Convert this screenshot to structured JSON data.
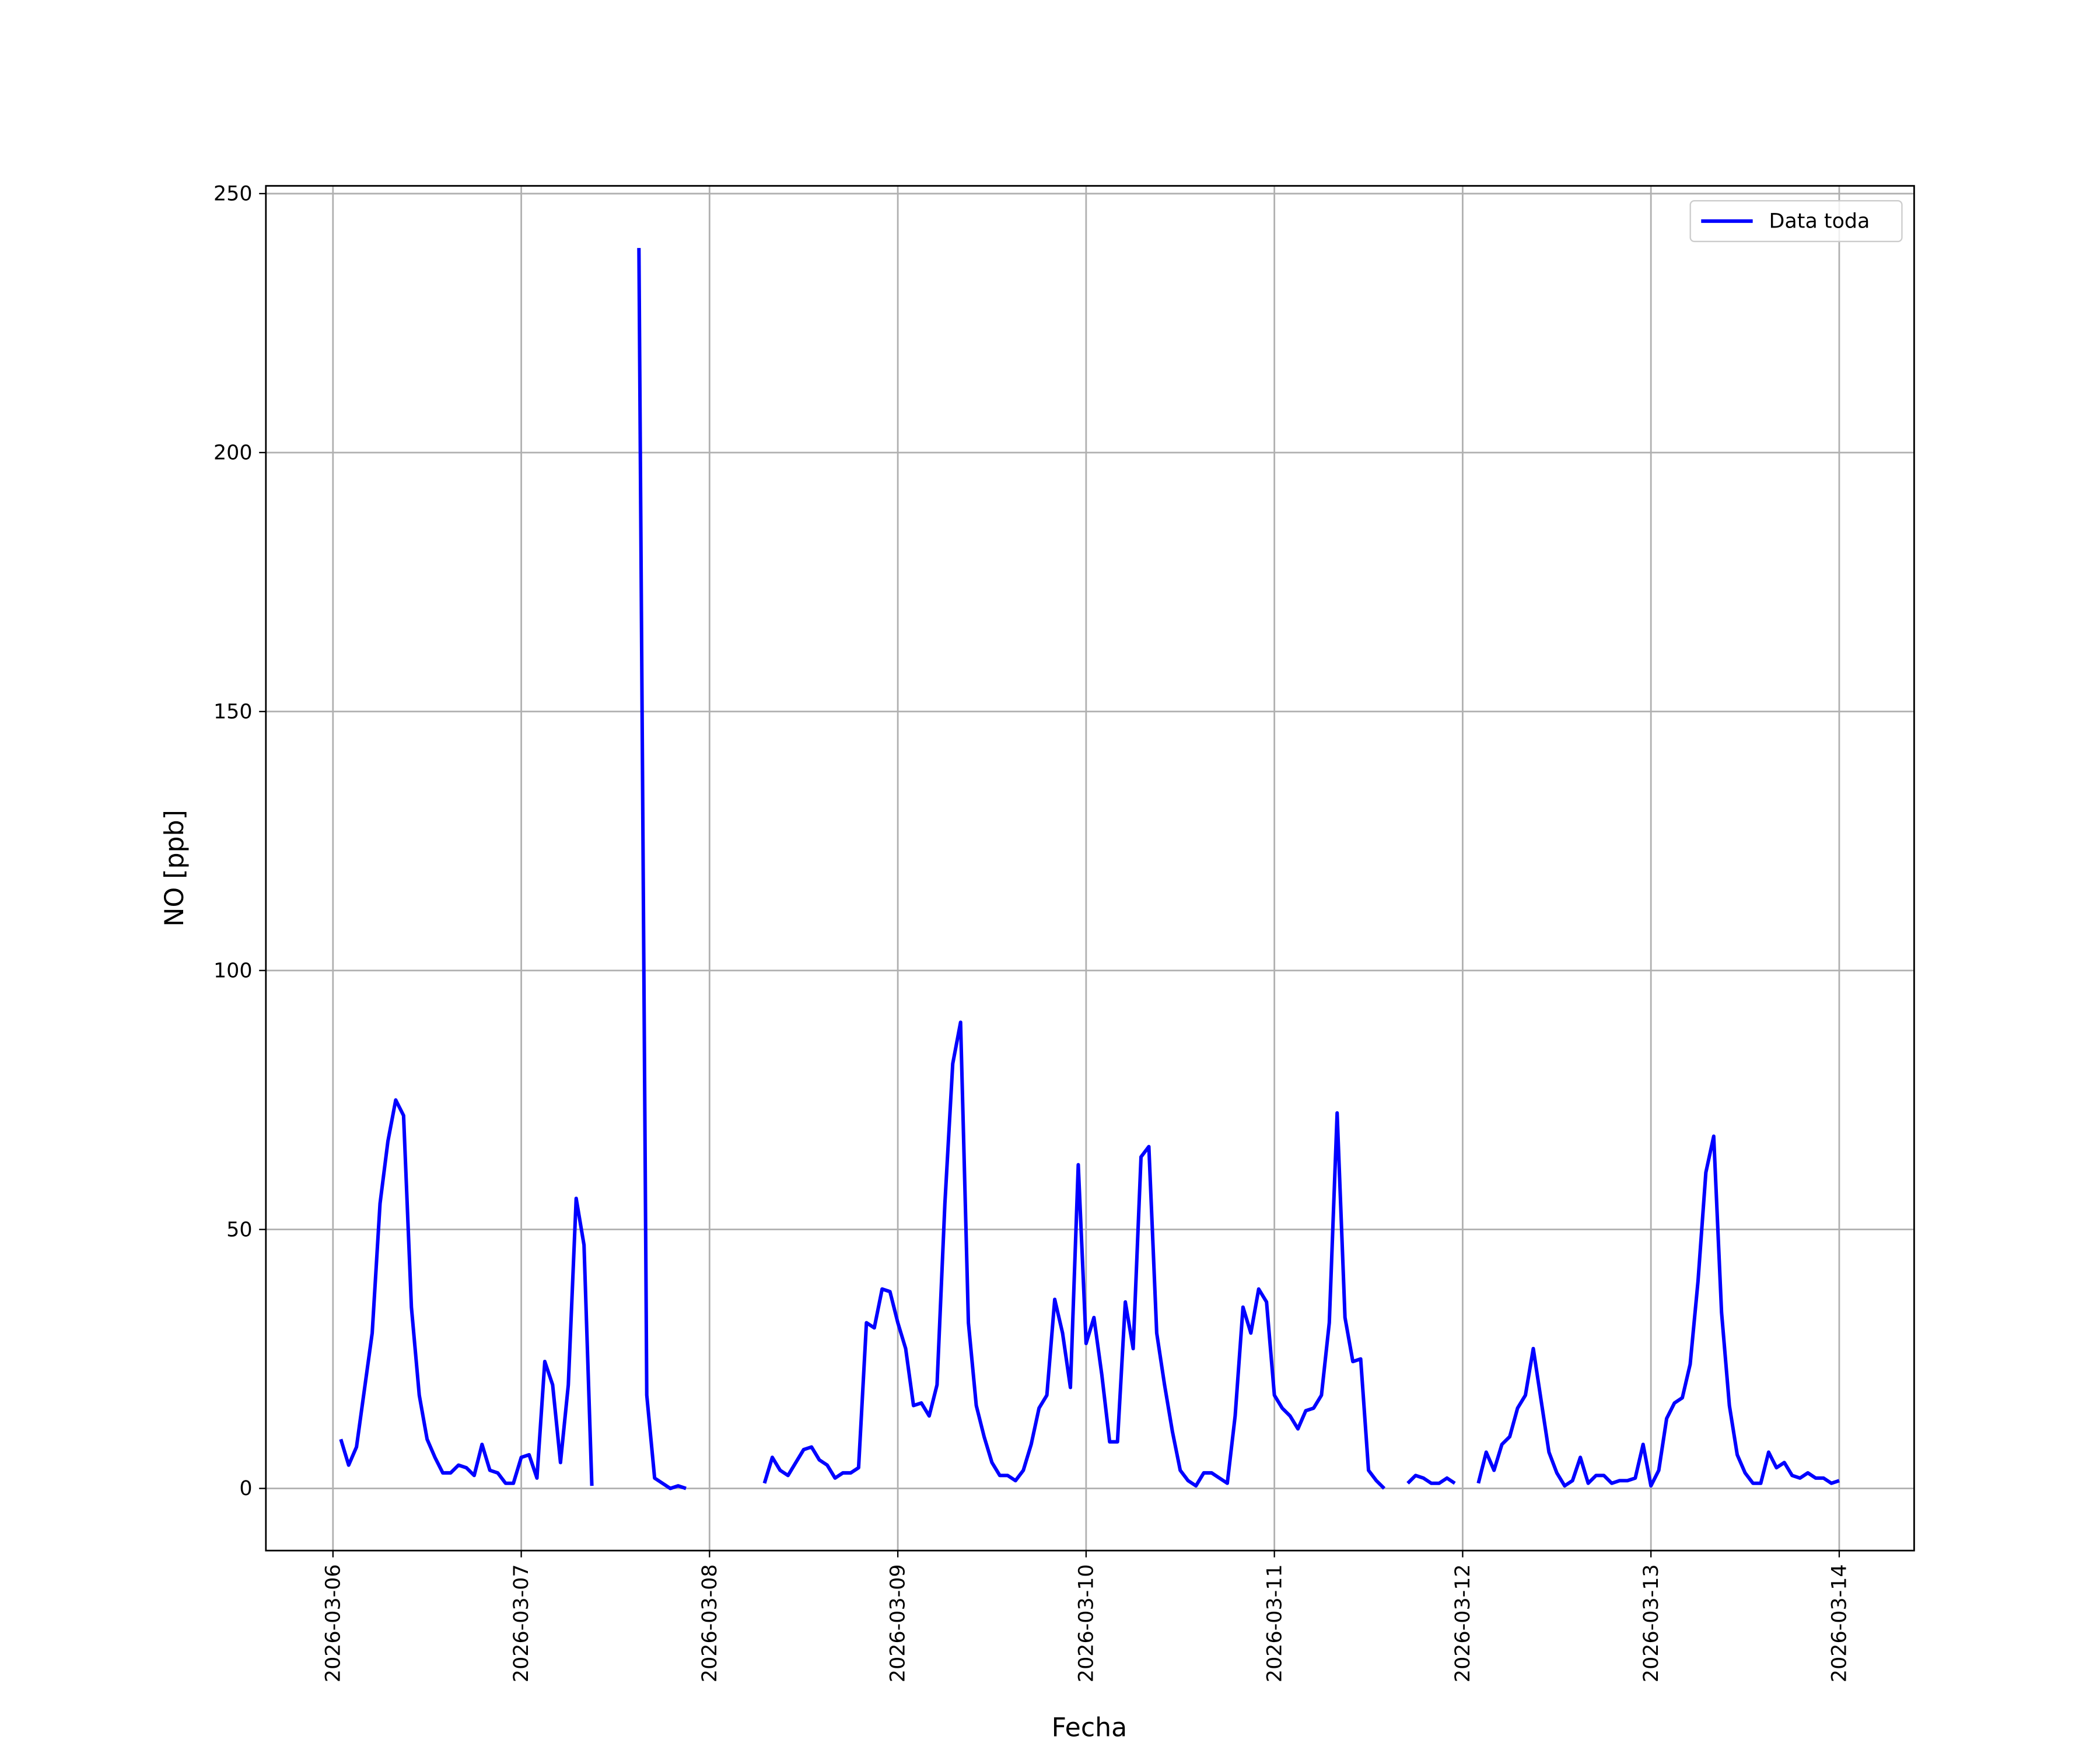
{
  "chart_data": {
    "type": "line",
    "x_label": "Fecha",
    "y_label": "NO [ppb]",
    "x": [
      "2026-03-06 01:00",
      "2026-03-06 02:00",
      "2026-03-06 03:00",
      "2026-03-06 04:00",
      "2026-03-06 05:00",
      "2026-03-06 06:00",
      "2026-03-06 07:00",
      "2026-03-06 08:00",
      "2026-03-06 09:00",
      "2026-03-06 10:00",
      "2026-03-06 11:00",
      "2026-03-06 12:00",
      "2026-03-06 13:00",
      "2026-03-06 14:00",
      "2026-03-06 15:00",
      "2026-03-06 16:00",
      "2026-03-06 17:00",
      "2026-03-06 18:00",
      "2026-03-06 19:00",
      "2026-03-06 20:00",
      "2026-03-06 21:00",
      "2026-03-06 22:00",
      "2026-03-06 23:00",
      "2026-03-07 00:00",
      "2026-03-07 01:00",
      "2026-03-07 02:00",
      "2026-03-07 03:00",
      "2026-03-07 04:00",
      "2026-03-07 05:00",
      "2026-03-07 06:00",
      "2026-03-07 07:00",
      "2026-03-07 08:00",
      "2026-03-07 09:00",
      "2026-03-07 10:00",
      "2026-03-07 11:00",
      "2026-03-07 12:00",
      "2026-03-07 13:00",
      "2026-03-07 14:00",
      "2026-03-07 15:00",
      "2026-03-07 16:00",
      "2026-03-07 17:00",
      "2026-03-07 18:00",
      "2026-03-07 19:00",
      "2026-03-07 20:00",
      "2026-03-07 21:00",
      "2026-03-07 22:00",
      "2026-03-07 23:00",
      "2026-03-08 00:00",
      "2026-03-08 01:00",
      "2026-03-08 02:00",
      "2026-03-08 03:00",
      "2026-03-08 04:00",
      "2026-03-08 05:00",
      "2026-03-08 06:00",
      "2026-03-08 07:00",
      "2026-03-08 08:00",
      "2026-03-08 09:00",
      "2026-03-08 10:00",
      "2026-03-08 11:00",
      "2026-03-08 12:00",
      "2026-03-08 13:00",
      "2026-03-08 14:00",
      "2026-03-08 15:00",
      "2026-03-08 16:00",
      "2026-03-08 17:00",
      "2026-03-08 18:00",
      "2026-03-08 19:00",
      "2026-03-08 20:00",
      "2026-03-08 21:00",
      "2026-03-08 22:00",
      "2026-03-08 23:00",
      "2026-03-09 00:00",
      "2026-03-09 01:00",
      "2026-03-09 02:00",
      "2026-03-09 03:00",
      "2026-03-09 04:00",
      "2026-03-09 05:00",
      "2026-03-09 06:00",
      "2026-03-09 07:00",
      "2026-03-09 08:00",
      "2026-03-09 09:00",
      "2026-03-09 10:00",
      "2026-03-09 11:00",
      "2026-03-09 12:00",
      "2026-03-09 13:00",
      "2026-03-09 14:00",
      "2026-03-09 15:00",
      "2026-03-09 16:00",
      "2026-03-09 17:00",
      "2026-03-09 18:00",
      "2026-03-09 19:00",
      "2026-03-09 20:00",
      "2026-03-09 21:00",
      "2026-03-09 22:00",
      "2026-03-09 23:00",
      "2026-03-10 00:00",
      "2026-03-10 01:00",
      "2026-03-10 02:00",
      "2026-03-10 03:00",
      "2026-03-10 04:00",
      "2026-03-10 05:00",
      "2026-03-10 06:00",
      "2026-03-10 07:00",
      "2026-03-10 08:00",
      "2026-03-10 09:00",
      "2026-03-10 10:00",
      "2026-03-10 11:00",
      "2026-03-10 12:00",
      "2026-03-10 13:00",
      "2026-03-10 14:00",
      "2026-03-10 15:00",
      "2026-03-10 16:00",
      "2026-03-10 17:00",
      "2026-03-10 18:00",
      "2026-03-10 19:00",
      "2026-03-10 20:00",
      "2026-03-10 21:00",
      "2026-03-10 22:00",
      "2026-03-10 23:00",
      "2026-03-11 00:00",
      "2026-03-11 01:00",
      "2026-03-11 02:00",
      "2026-03-11 03:00",
      "2026-03-11 04:00",
      "2026-03-11 05:00",
      "2026-03-11 06:00",
      "2026-03-11 07:00",
      "2026-03-11 08:00",
      "2026-03-11 09:00",
      "2026-03-11 10:00",
      "2026-03-11 11:00",
      "2026-03-11 12:00",
      "2026-03-11 13:00",
      "2026-03-11 14:00",
      "2026-03-11 15:00",
      "2026-03-11 16:00",
      "2026-03-11 17:00",
      "2026-03-11 18:00",
      "2026-03-11 19:00",
      "2026-03-11 20:00",
      "2026-03-11 21:00",
      "2026-03-11 22:00",
      "2026-03-11 23:00",
      "2026-03-12 00:00",
      "2026-03-12 01:00",
      "2026-03-12 02:00",
      "2026-03-12 03:00",
      "2026-03-12 04:00",
      "2026-03-12 05:00",
      "2026-03-12 06:00",
      "2026-03-12 07:00",
      "2026-03-12 08:00",
      "2026-03-12 09:00",
      "2026-03-12 10:00",
      "2026-03-12 11:00",
      "2026-03-12 12:00",
      "2026-03-12 13:00",
      "2026-03-12 14:00",
      "2026-03-12 15:00",
      "2026-03-12 16:00",
      "2026-03-12 17:00",
      "2026-03-12 18:00",
      "2026-03-12 19:00",
      "2026-03-12 20:00",
      "2026-03-12 21:00",
      "2026-03-12 22:00",
      "2026-03-12 23:00",
      "2026-03-13 00:00",
      "2026-03-13 01:00",
      "2026-03-13 02:00",
      "2026-03-13 03:00",
      "2026-03-13 04:00",
      "2026-03-13 05:00",
      "2026-03-13 06:00",
      "2026-03-13 07:00",
      "2026-03-13 08:00",
      "2026-03-13 09:00",
      "2026-03-13 10:00",
      "2026-03-13 11:00",
      "2026-03-13 12:00",
      "2026-03-13 13:00",
      "2026-03-13 14:00",
      "2026-03-13 15:00",
      "2026-03-13 16:00",
      "2026-03-13 17:00",
      "2026-03-13 18:00",
      "2026-03-13 19:00",
      "2026-03-13 20:00",
      "2026-03-13 21:00",
      "2026-03-13 22:00",
      "2026-03-13 23:00",
      "2026-03-14 00:00"
    ],
    "series": [
      {
        "name": "Data toda",
        "color": "#0000ff",
        "values": [
          9.5,
          4.5,
          8,
          19,
          30,
          55,
          67,
          75,
          72,
          35,
          18,
          9.5,
          6,
          3,
          3,
          4.5,
          4,
          2.5,
          8.5,
          3.5,
          3,
          1,
          1,
          6,
          6.5,
          2,
          24.5,
          20,
          5,
          20,
          56,
          47,
          0.5,
          null,
          null,
          null,
          null,
          null,
          239.5,
          18,
          2,
          1,
          0,
          0.5,
          0,
          null,
          null,
          null,
          null,
          null,
          null,
          null,
          null,
          null,
          1,
          6,
          3.5,
          2.5,
          5,
          7.5,
          8,
          5.5,
          4.5,
          2,
          3,
          3,
          4,
          32,
          31,
          38.5,
          38,
          32,
          27,
          16,
          16.5,
          14,
          20,
          55,
          82,
          90,
          32,
          16,
          10,
          5,
          2.5,
          2.5,
          1.5,
          3.5,
          8.5,
          15.5,
          18,
          36.5,
          30,
          19.5,
          62.5,
          28,
          33,
          22,
          9,
          9,
          36,
          27,
          64,
          66,
          30,
          20,
          11,
          3.5,
          1.5,
          0.5,
          3,
          3,
          2,
          1,
          14,
          35,
          30,
          38.5,
          36,
          18,
          15.5,
          14,
          11.5,
          15,
          15.5,
          18,
          32,
          72.5,
          33,
          24.5,
          25,
          3.5,
          1.5,
          0,
          null,
          null,
          1,
          2.5,
          2,
          1,
          1,
          2,
          1,
          null,
          null,
          1,
          7,
          3.5,
          8.5,
          10,
          15.5,
          18,
          27,
          17,
          7,
          3,
          0.5,
          1.5,
          6,
          1,
          2.5,
          2.5,
          1,
          1.5,
          1.5,
          2,
          8.5,
          0.5,
          3.5,
          13.5,
          16.5,
          17.5,
          24,
          40,
          61,
          68,
          34,
          16,
          6.5,
          3,
          1,
          1,
          7,
          4,
          5,
          2.5,
          2,
          3,
          2,
          2,
          1,
          1.5
        ]
      }
    ],
    "xlim": [
      "2026-03-05 15:27",
      "2026-03-14 09:33"
    ],
    "xticks": [
      "2026-03-06",
      "2026-03-07",
      "2026-03-08",
      "2026-03-09",
      "2026-03-10",
      "2026-03-11",
      "2026-03-12",
      "2026-03-13",
      "2026-03-14"
    ],
    "ylim": [
      -12,
      251.5
    ],
    "yticks": [
      0,
      50,
      100,
      150,
      200,
      250
    ],
    "grid": true,
    "legend": "upper right"
  }
}
